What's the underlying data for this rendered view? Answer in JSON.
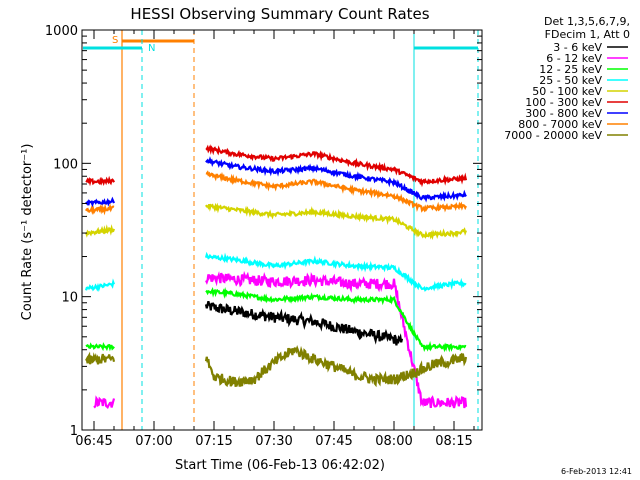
{
  "chart_data": {
    "type": "line",
    "title": "HESSI Observing Summary Count Rates",
    "xlabel": "Start Time (06-Feb-13 06:42:02)",
    "ylabel": "Count Rate (s⁻¹ detector⁻¹)",
    "yscale": "log",
    "ylim": [
      1,
      1000
    ],
    "xlim": [
      "06:42",
      "08:22"
    ],
    "xticks": [
      "06:45",
      "07:00",
      "07:15",
      "07:30",
      "07:45",
      "08:00",
      "08:15"
    ],
    "yticks": [
      "1",
      "10",
      "100",
      "1000"
    ],
    "legend_position": "right",
    "legend_header": [
      "Det 1,3,5,6,7,9,",
      "FDecim 1, Att 0"
    ],
    "date_stamp": "6-Feb-2013 12:41",
    "markers": {
      "saa_label": "S",
      "night_label": "N",
      "saa_color": "#ff8000",
      "night_color": "#00e0e0",
      "saa_start": "06:52",
      "saa_end": "07:10",
      "night_start": "06:42",
      "night_end": "06:57",
      "night2_start": "08:05",
      "night2_end": "08:21"
    },
    "gaps": [
      [
        "06:52",
        "07:13"
      ]
    ],
    "series": [
      {
        "name": "3 - 6 keV",
        "color": "#000000",
        "x": [
          "07:13",
          "07:20",
          "07:30",
          "07:40",
          "07:50",
          "08:00",
          "08:02"
        ],
        "y": [
          8.5,
          7.8,
          7.0,
          6.5,
          5.5,
          4.8,
          4.5
        ]
      },
      {
        "name": "6 - 12 keV",
        "color": "#ff00ff",
        "x": [
          "06:45",
          "06:50",
          "07:13",
          "07:20",
          "07:30",
          "07:40",
          "07:50",
          "08:00",
          "08:07",
          "08:15",
          "08:18"
        ],
        "y": [
          1.6,
          1.6,
          14,
          13.5,
          13,
          13.3,
          12.5,
          12.5,
          1.6,
          1.6,
          1.6
        ]
      },
      {
        "name": "12 - 25 keV",
        "color": "#00ff00",
        "x": [
          "06:43",
          "06:47",
          "06:50",
          "07:13",
          "07:20",
          "07:30",
          "07:40",
          "07:50",
          "08:00",
          "08:07",
          "08:15",
          "08:18"
        ],
        "y": [
          4.2,
          4.2,
          4.2,
          11,
          10.5,
          9.5,
          10,
          9.5,
          9.5,
          4.2,
          4.2,
          4.2
        ]
      },
      {
        "name": "25 - 50 keV",
        "color": "#00ffff",
        "x": [
          "06:43",
          "06:47",
          "06:50",
          "07:13",
          "07:20",
          "07:30",
          "07:40",
          "07:50",
          "08:00",
          "08:07",
          "08:15",
          "08:18"
        ],
        "y": [
          11.5,
          12,
          12.5,
          20,
          19,
          17,
          18.5,
          17,
          16.5,
          11.5,
          12.5,
          12.5
        ]
      },
      {
        "name": "50 - 100 keV",
        "color": "#d4d400",
        "x": [
          "06:43",
          "06:47",
          "06:50",
          "07:13",
          "07:20",
          "07:30",
          "07:40",
          "07:50",
          "08:00",
          "08:07",
          "08:15",
          "08:18"
        ],
        "y": [
          30,
          31,
          32,
          48,
          45,
          41,
          43,
          40,
          38,
          29,
          30,
          31
        ]
      },
      {
        "name": "100 - 300 keV",
        "color": "#e00000",
        "x": [
          "06:43",
          "06:47",
          "06:50",
          "07:13",
          "07:20",
          "07:30",
          "07:40",
          "07:50",
          "08:00",
          "08:07",
          "08:15",
          "08:18"
        ],
        "y": [
          73,
          73,
          74,
          130,
          118,
          108,
          118,
          100,
          90,
          73,
          76,
          77
        ]
      },
      {
        "name": "300 - 800 keV",
        "color": "#0000ff",
        "x": [
          "06:43",
          "06:47",
          "06:50",
          "07:13",
          "07:20",
          "07:30",
          "07:40",
          "07:50",
          "08:00",
          "08:07",
          "08:15",
          "08:18"
        ],
        "y": [
          50,
          51,
          52,
          105,
          95,
          87,
          92,
          80,
          72,
          55,
          57,
          58
        ]
      },
      {
        "name": "800 - 7000 keV",
        "color": "#ff8000",
        "x": [
          "06:43",
          "06:47",
          "06:50",
          "07:13",
          "07:20",
          "07:30",
          "07:40",
          "07:50",
          "08:00",
          "08:07",
          "08:15",
          "08:18"
        ],
        "y": [
          44,
          45,
          46,
          83,
          75,
          67,
          73,
          63,
          57,
          46,
          47,
          48
        ]
      },
      {
        "name": "7000 - 20000 keV",
        "color": "#808000",
        "x": [
          "06:43",
          "06:47",
          "06:50",
          "07:13",
          "07:15",
          "07:20",
          "07:25",
          "07:30",
          "07:35",
          "07:40",
          "07:45",
          "07:50",
          "07:55",
          "08:00",
          "08:05",
          "08:10",
          "08:15",
          "08:18"
        ],
        "y": [
          3.3,
          3.4,
          3.4,
          3.5,
          2.5,
          2.3,
          2.4,
          3.2,
          4.0,
          3.4,
          3.0,
          2.6,
          2.4,
          2.4,
          2.7,
          3.1,
          3.3,
          3.5
        ]
      }
    ]
  }
}
